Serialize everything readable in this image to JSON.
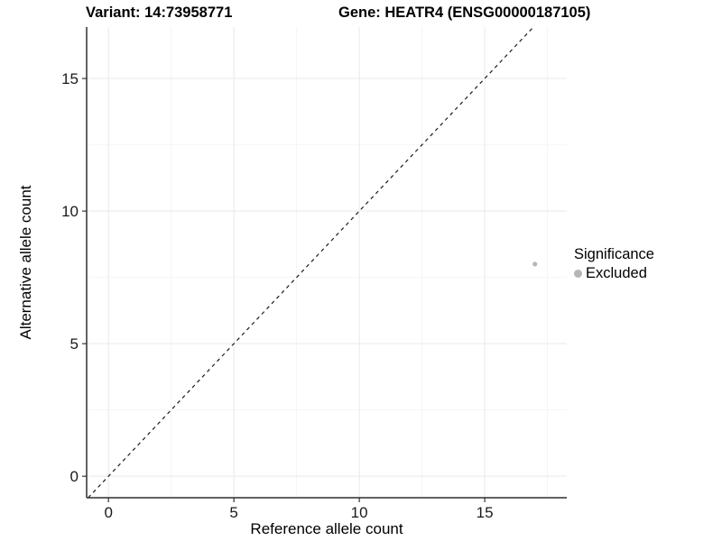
{
  "title": {
    "variant": "Variant: 14:73958771",
    "gene": "Gene: HEATR4 (ENSG00000187105)"
  },
  "colors": {
    "background": "#ffffff",
    "axis_line": "#2f2f2f",
    "tick_mark": "#333333",
    "tick_label": "#1a1a1a",
    "grid_major": "#e9e9e9",
    "grid_minor": "#f4f4f4",
    "identity_line": "#1a1a1a",
    "point": "#b6b6b6",
    "text": "#000000"
  },
  "chart_data": {
    "type": "scatter",
    "title": "",
    "xlabel": "Reference allele count",
    "ylabel": "Alternative allele count",
    "xlim": [
      -0.87,
      18.27
    ],
    "ylim": [
      -0.81,
      16.94
    ],
    "x_ticks": [
      0,
      5,
      10,
      15
    ],
    "y_ticks": [
      0,
      5,
      10,
      15
    ],
    "x_minor_gridlines": [
      2.5,
      7.5,
      12.5,
      17.5
    ],
    "y_minor_gridlines": [
      2.5,
      7.5,
      12.5
    ],
    "grid": true,
    "panel_border": false,
    "points": [
      {
        "x": 17,
        "y": 8,
        "significance": "Excluded"
      }
    ],
    "reference_line": {
      "type": "identity",
      "equation": "y = x",
      "style": "dashed"
    },
    "legend": {
      "title": "Significance",
      "position": "right",
      "items": [
        {
          "label": "Excluded",
          "color": "#b6b6b6"
        }
      ]
    }
  }
}
